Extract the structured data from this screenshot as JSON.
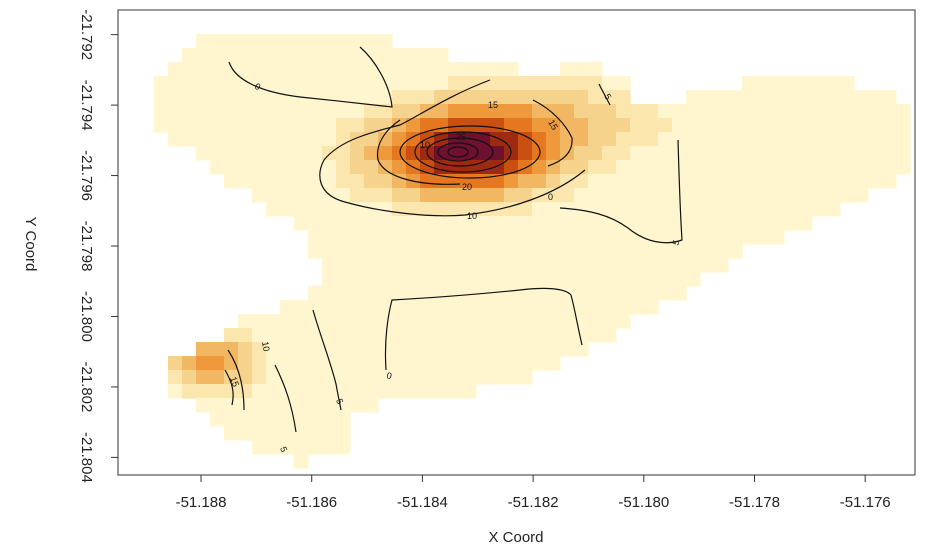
{
  "chart_data": {
    "type": "heatmap",
    "title": "",
    "xlabel": "X Coord",
    "ylabel": "Y Coord",
    "xlim": [
      -51.1895,
      -51.1751
    ],
    "ylim": [
      -21.8045,
      -21.7913
    ],
    "x_ticks": [
      -51.188,
      -51.186,
      -51.184,
      -51.182,
      -51.18,
      -51.178,
      -51.176
    ],
    "x_tick_labels": [
      "-51.188",
      "-51.186",
      "-51.184",
      "-51.182",
      "-51.180",
      "-51.178",
      "-51.176"
    ],
    "y_ticks": [
      -21.792,
      -21.794,
      -21.796,
      -21.798,
      -21.8,
      -21.802,
      -21.804
    ],
    "y_tick_labels": [
      "-21.792",
      "-21.794",
      "-21.796",
      "-21.798",
      "-21.800",
      "-21.802",
      "-21.804"
    ],
    "grid": false,
    "legend": "none",
    "color_scale": [
      "#fff6cf",
      "#fbe6ae",
      "#f6d38d",
      "#f2b763",
      "#ee9a3c",
      "#e4771f",
      "#c94f12",
      "#9e2a12",
      "#6e1030"
    ],
    "hotspots": [
      {
        "x": -51.1833,
        "y": -21.7954,
        "peak": 30
      },
      {
        "x": -51.1878,
        "y": -21.8013,
        "peak": 16
      }
    ],
    "contour_levels": [
      0,
      5,
      10,
      15,
      20,
      25,
      30
    ],
    "contour_labels": [
      "0",
      "0",
      "5",
      "5",
      "10",
      "10",
      "15",
      "15",
      "20",
      "25",
      "5",
      "10",
      "15",
      "5",
      "0"
    ]
  }
}
